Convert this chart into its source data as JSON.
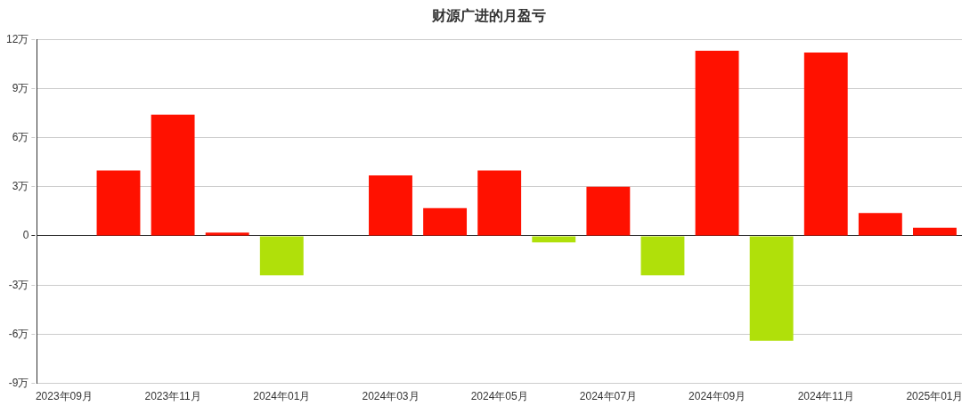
{
  "chart_data": {
    "type": "bar",
    "title": "财源广进的月盈亏",
    "categories": [
      "2023年09月",
      null,
      "2023年11月",
      null,
      "2024年01月",
      null,
      "2024年03月",
      null,
      "2024年05月",
      null,
      "2024年07月",
      null,
      "2024年09月",
      null,
      "2024年11月",
      null,
      "2025年01月"
    ],
    "values": [
      0,
      4.0,
      7.4,
      0.2,
      -2.4,
      0,
      3.7,
      1.7,
      4.0,
      -0.4,
      3.0,
      -2.4,
      11.3,
      -6.4,
      11.2,
      1.4,
      0.5
    ],
    "colors": [
      "#ff1100",
      "#ff1100",
      "#ff1100",
      "#ff1100",
      "#b0e00a",
      "#ff1100",
      "#ff1100",
      "#ff1100",
      "#ff1100",
      "#b0e00a",
      "#ff1100",
      "#b0e00a",
      "#ff1100",
      "#b0e00a",
      "#ff1100",
      "#ff1100",
      "#ff1100"
    ],
    "ylim": [
      -9,
      12
    ],
    "yticks": [
      {
        "value": -9,
        "label": "-9万"
      },
      {
        "value": -6,
        "label": "-6万"
      },
      {
        "value": -3,
        "label": "-3万"
      },
      {
        "value": 0,
        "label": "0"
      },
      {
        "value": 3,
        "label": "3万"
      },
      {
        "value": 6,
        "label": "6万"
      },
      {
        "value": 9,
        "label": "9万"
      },
      {
        "value": 12,
        "label": "12万"
      }
    ],
    "grid": "y"
  }
}
